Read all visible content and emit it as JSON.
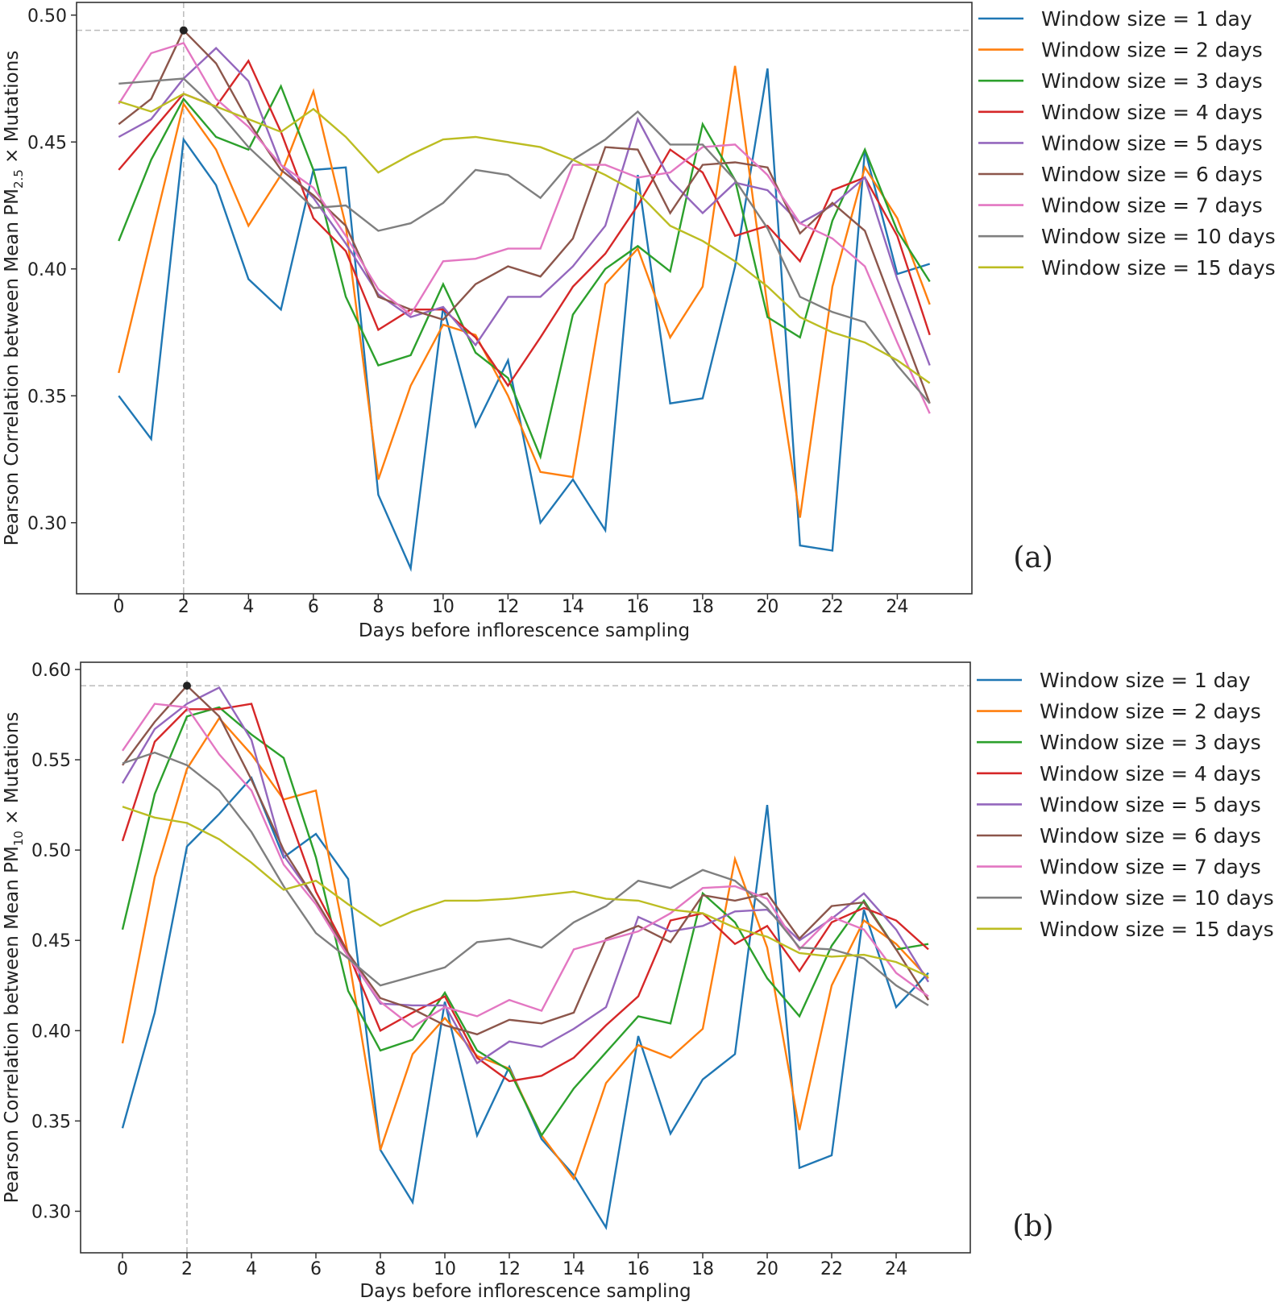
{
  "chart_data": [
    {
      "type": "line",
      "panel_label": "(a)",
      "title": "",
      "xlabel": "Days before inflorescence sampling",
      "ylabel_parts": {
        "pre": "Pearson Correlation between Mean PM",
        "sub": "2.5",
        "post": " × Mutations"
      },
      "xlim": [
        -1.3,
        26.3
      ],
      "ylim": [
        0.272,
        0.505
      ],
      "xticks": [
        0,
        2,
        4,
        6,
        8,
        10,
        12,
        14,
        16,
        18,
        20,
        22,
        24
      ],
      "yticks": [
        0.3,
        0.35,
        0.4,
        0.45,
        0.5
      ],
      "ytick_labels": [
        "0.30",
        "0.35",
        "0.40",
        "0.45",
        "0.50"
      ],
      "grid": false,
      "legend_position": "outside-right-top",
      "max_marker": {
        "x": 2,
        "y": 0.494
      },
      "x": [
        0,
        1,
        2,
        3,
        4,
        5,
        6,
        7,
        8,
        9,
        10,
        11,
        12,
        13,
        14,
        15,
        16,
        17,
        18,
        19,
        20,
        21,
        22,
        23,
        24,
        25
      ],
      "series": [
        {
          "name": "Window size = 1 day",
          "color": "#1f77b4",
          "values": [
            0.35,
            0.333,
            0.451,
            0.433,
            0.396,
            0.384,
            0.439,
            0.44,
            0.311,
            0.282,
            0.385,
            0.338,
            0.364,
            0.3,
            0.317,
            0.297,
            0.437,
            0.347,
            0.349,
            0.401,
            0.479,
            0.291,
            0.289,
            0.447,
            0.398,
            0.402
          ]
        },
        {
          "name": "Window size = 2 days",
          "color": "#ff7f0e",
          "values": [
            0.359,
            0.412,
            0.465,
            0.447,
            0.417,
            0.437,
            0.47,
            0.417,
            0.317,
            0.354,
            0.378,
            0.374,
            0.35,
            0.32,
            0.318,
            0.394,
            0.408,
            0.373,
            0.393,
            0.48,
            0.385,
            0.302,
            0.393,
            0.44,
            0.42,
            0.386
          ]
        },
        {
          "name": "Window size = 3 days",
          "color": "#2ca02c",
          "values": [
            0.411,
            0.443,
            0.467,
            0.452,
            0.447,
            0.472,
            0.439,
            0.389,
            0.362,
            0.366,
            0.394,
            0.367,
            0.357,
            0.326,
            0.382,
            0.4,
            0.409,
            0.399,
            0.457,
            0.435,
            0.381,
            0.373,
            0.419,
            0.447,
            0.415,
            0.395
          ]
        },
        {
          "name": "Window size = 4 days",
          "color": "#d62728",
          "values": [
            0.439,
            0.454,
            0.469,
            0.464,
            0.482,
            0.454,
            0.42,
            0.407,
            0.376,
            0.384,
            0.384,
            0.373,
            0.354,
            0.373,
            0.393,
            0.406,
            0.425,
            0.447,
            0.438,
            0.413,
            0.417,
            0.403,
            0.431,
            0.436,
            0.413,
            0.374
          ]
        },
        {
          "name": "Window size = 5 days",
          "color": "#9467bd",
          "values": [
            0.452,
            0.459,
            0.475,
            0.487,
            0.474,
            0.441,
            0.428,
            0.41,
            0.39,
            0.381,
            0.385,
            0.37,
            0.389,
            0.389,
            0.401,
            0.417,
            0.459,
            0.435,
            0.422,
            0.434,
            0.431,
            0.418,
            0.425,
            0.436,
            0.396,
            0.362
          ]
        },
        {
          "name": "Window size = 6 days",
          "color": "#8c564b",
          "values": [
            0.457,
            0.467,
            0.494,
            0.481,
            0.458,
            0.439,
            0.429,
            0.417,
            0.389,
            0.384,
            0.38,
            0.394,
            0.401,
            0.397,
            0.412,
            0.448,
            0.447,
            0.422,
            0.441,
            0.442,
            0.44,
            0.414,
            0.426,
            0.415,
            0.381,
            0.347
          ]
        },
        {
          "name": "Window size = 7 days",
          "color": "#e377c2",
          "values": [
            0.465,
            0.485,
            0.489,
            0.467,
            0.456,
            0.441,
            0.432,
            0.413,
            0.392,
            0.382,
            0.403,
            0.404,
            0.408,
            0.408,
            0.441,
            0.441,
            0.436,
            0.438,
            0.448,
            0.449,
            0.437,
            0.418,
            0.412,
            0.401,
            0.371,
            0.343
          ]
        },
        {
          "name": "Window size = 10 days",
          "color": "#7f7f7f",
          "values": [
            0.473,
            0.474,
            0.475,
            0.463,
            0.448,
            0.436,
            0.424,
            0.425,
            0.415,
            0.418,
            0.426,
            0.439,
            0.437,
            0.428,
            0.443,
            0.451,
            0.462,
            0.449,
            0.449,
            0.435,
            0.416,
            0.389,
            0.383,
            0.379,
            0.362,
            0.347
          ]
        },
        {
          "name": "Window size = 15 days",
          "color": "#bcbd22",
          "values": [
            0.466,
            0.462,
            0.469,
            0.464,
            0.459,
            0.454,
            0.463,
            0.452,
            0.438,
            0.445,
            0.451,
            0.452,
            0.45,
            0.448,
            0.443,
            0.437,
            0.43,
            0.417,
            0.411,
            0.403,
            0.393,
            0.381,
            0.375,
            0.371,
            0.364,
            0.355
          ]
        }
      ]
    },
    {
      "type": "line",
      "panel_label": "(b)",
      "title": "",
      "xlabel": "Days before inflorescence sampling",
      "ylabel_parts": {
        "pre": "Pearson Correlation between Mean PM",
        "sub": "10",
        "post": " × Mutations"
      },
      "xlim": [
        -1.3,
        26.3
      ],
      "ylim": [
        0.277,
        0.604
      ],
      "xticks": [
        0,
        2,
        4,
        6,
        8,
        10,
        12,
        14,
        16,
        18,
        20,
        22,
        24
      ],
      "yticks": [
        0.3,
        0.35,
        0.4,
        0.45,
        0.5,
        0.55,
        0.6
      ],
      "ytick_labels": [
        "0.30",
        "0.35",
        "0.40",
        "0.45",
        "0.50",
        "0.55",
        "0.60"
      ],
      "grid": false,
      "legend_position": "outside-right-top",
      "max_marker": {
        "x": 2,
        "y": 0.591
      },
      "x": [
        0,
        1,
        2,
        3,
        4,
        5,
        6,
        7,
        8,
        9,
        10,
        11,
        12,
        13,
        14,
        15,
        16,
        17,
        18,
        19,
        20,
        21,
        22,
        23,
        24,
        25
      ],
      "series": [
        {
          "name": "Window size = 1 day",
          "color": "#1f77b4",
          "values": [
            0.346,
            0.41,
            0.502,
            0.52,
            0.54,
            0.496,
            0.509,
            0.484,
            0.334,
            0.305,
            0.416,
            0.342,
            0.38,
            0.34,
            0.32,
            0.291,
            0.397,
            0.343,
            0.373,
            0.387,
            0.525,
            0.324,
            0.331,
            0.467,
            0.413,
            0.432
          ]
        },
        {
          "name": "Window size = 2 days",
          "color": "#ff7f0e",
          "values": [
            0.393,
            0.485,
            0.545,
            0.573,
            0.553,
            0.528,
            0.533,
            0.442,
            0.334,
            0.387,
            0.407,
            0.386,
            0.379,
            0.342,
            0.318,
            0.371,
            0.392,
            0.385,
            0.401,
            0.495,
            0.446,
            0.345,
            0.425,
            0.461,
            0.448,
            0.429
          ]
        },
        {
          "name": "Window size = 3 days",
          "color": "#2ca02c",
          "values": [
            0.456,
            0.531,
            0.574,
            0.579,
            0.564,
            0.551,
            0.496,
            0.422,
            0.389,
            0.395,
            0.421,
            0.389,
            0.378,
            0.342,
            0.368,
            0.388,
            0.408,
            0.404,
            0.476,
            0.46,
            0.429,
            0.408,
            0.447,
            0.472,
            0.445,
            0.448
          ]
        },
        {
          "name": "Window size = 4 days",
          "color": "#d62728",
          "values": [
            0.505,
            0.56,
            0.578,
            0.578,
            0.581,
            0.527,
            0.477,
            0.443,
            0.4,
            0.41,
            0.419,
            0.385,
            0.372,
            0.375,
            0.385,
            0.403,
            0.419,
            0.461,
            0.465,
            0.448,
            0.458,
            0.433,
            0.46,
            0.468,
            0.461,
            0.445
          ]
        },
        {
          "name": "Window size = 5 days",
          "color": "#9467bd",
          "values": [
            0.537,
            0.567,
            0.581,
            0.59,
            0.561,
            0.497,
            0.472,
            0.442,
            0.415,
            0.414,
            0.414,
            0.382,
            0.394,
            0.391,
            0.401,
            0.413,
            0.463,
            0.455,
            0.458,
            0.466,
            0.467,
            0.45,
            0.462,
            0.476,
            0.456,
            0.427
          ]
        },
        {
          "name": "Window size = 6 days",
          "color": "#8c564b",
          "values": [
            0.547,
            0.571,
            0.591,
            0.574,
            0.539,
            0.5,
            0.472,
            0.443,
            0.418,
            0.412,
            0.403,
            0.398,
            0.406,
            0.404,
            0.41,
            0.451,
            0.458,
            0.449,
            0.475,
            0.472,
            0.476,
            0.451,
            0.469,
            0.471,
            0.445,
            0.417
          ]
        },
        {
          "name": "Window size = 7 days",
          "color": "#e377c2",
          "values": [
            0.555,
            0.581,
            0.579,
            0.553,
            0.533,
            0.492,
            0.47,
            0.441,
            0.416,
            0.402,
            0.413,
            0.408,
            0.417,
            0.411,
            0.445,
            0.45,
            0.455,
            0.465,
            0.479,
            0.48,
            0.473,
            0.445,
            0.463,
            0.456,
            0.432,
            0.419
          ]
        },
        {
          "name": "Window size = 10 days",
          "color": "#7f7f7f",
          "values": [
            0.548,
            0.554,
            0.547,
            0.533,
            0.51,
            0.48,
            0.454,
            0.44,
            0.425,
            0.43,
            0.435,
            0.449,
            0.451,
            0.446,
            0.46,
            0.469,
            0.483,
            0.479,
            0.489,
            0.483,
            0.468,
            0.446,
            0.445,
            0.44,
            0.425,
            0.414
          ]
        },
        {
          "name": "Window size = 15 days",
          "color": "#bcbd22",
          "values": [
            0.524,
            0.518,
            0.515,
            0.506,
            0.493,
            0.478,
            0.483,
            0.47,
            0.458,
            0.466,
            0.472,
            0.472,
            0.473,
            0.475,
            0.477,
            0.473,
            0.472,
            0.467,
            0.465,
            0.457,
            0.452,
            0.443,
            0.441,
            0.442,
            0.438,
            0.43
          ]
        }
      ]
    }
  ]
}
